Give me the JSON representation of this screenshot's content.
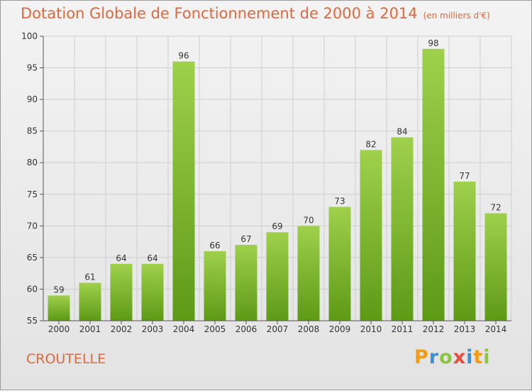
{
  "title": "Dotation Globale de Fonctionnement de 2000 à 2014",
  "unit_note": "(en milliers d'€)",
  "commune": "CROUTELLE",
  "logo": {
    "letters": [
      "P",
      "r",
      "o",
      "x",
      "i",
      "t",
      "i"
    ],
    "colors": [
      "#f39c12",
      "#3b8fd6",
      "#8cc63f",
      "#e74c3c",
      "#3b8fd6",
      "#f39c12",
      "#8cc63f"
    ]
  },
  "colors": {
    "accent": "#e0683c",
    "bar_top": "#9fd04c",
    "bar_bottom": "#5d9a16",
    "grid": "#cfcfcf"
  },
  "chart_data": {
    "type": "bar",
    "categories": [
      "2000",
      "2001",
      "2002",
      "2003",
      "2004",
      "2005",
      "2006",
      "2007",
      "2008",
      "2009",
      "2010",
      "2011",
      "2012",
      "2013",
      "2014"
    ],
    "values": [
      59,
      61,
      64,
      64,
      96,
      66,
      67,
      69,
      70,
      73,
      82,
      84,
      98,
      77,
      72
    ],
    "ylim": [
      55,
      100
    ],
    "yticks": [
      55,
      60,
      65,
      70,
      75,
      80,
      85,
      90,
      95,
      100
    ],
    "grid": true,
    "data_labels": true
  }
}
